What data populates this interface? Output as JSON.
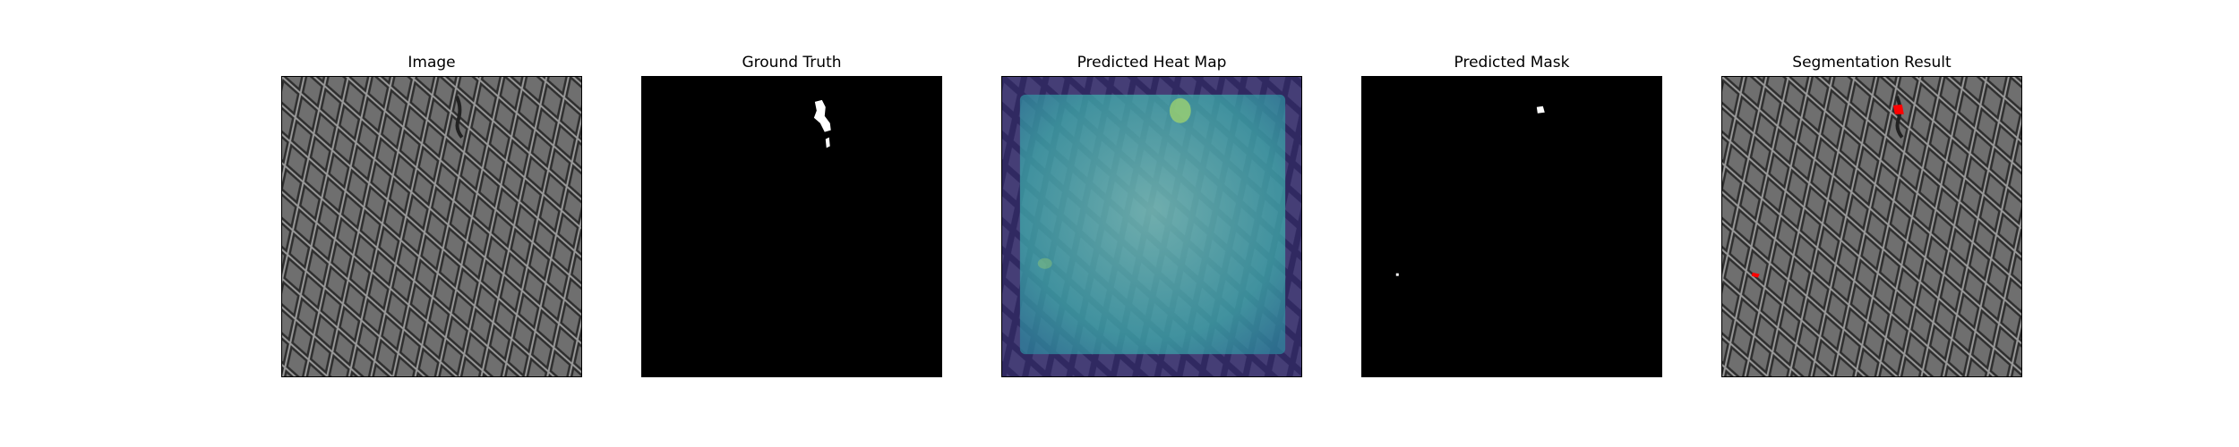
{
  "panels": [
    {
      "title": "Image"
    },
    {
      "title": "Ground Truth"
    },
    {
      "title": "Predicted Heat Map"
    },
    {
      "title": "Predicted Mask"
    },
    {
      "title": "Segmentation Result"
    }
  ],
  "colors": {
    "background": "#ffffff",
    "mask_black": "#000000",
    "mask_white": "#ffffff",
    "heat_low": "#3b2f86",
    "heat_mid": "#3fb5b0",
    "heat_high": "#a6d96a",
    "overlay_red": "#ff0000"
  }
}
